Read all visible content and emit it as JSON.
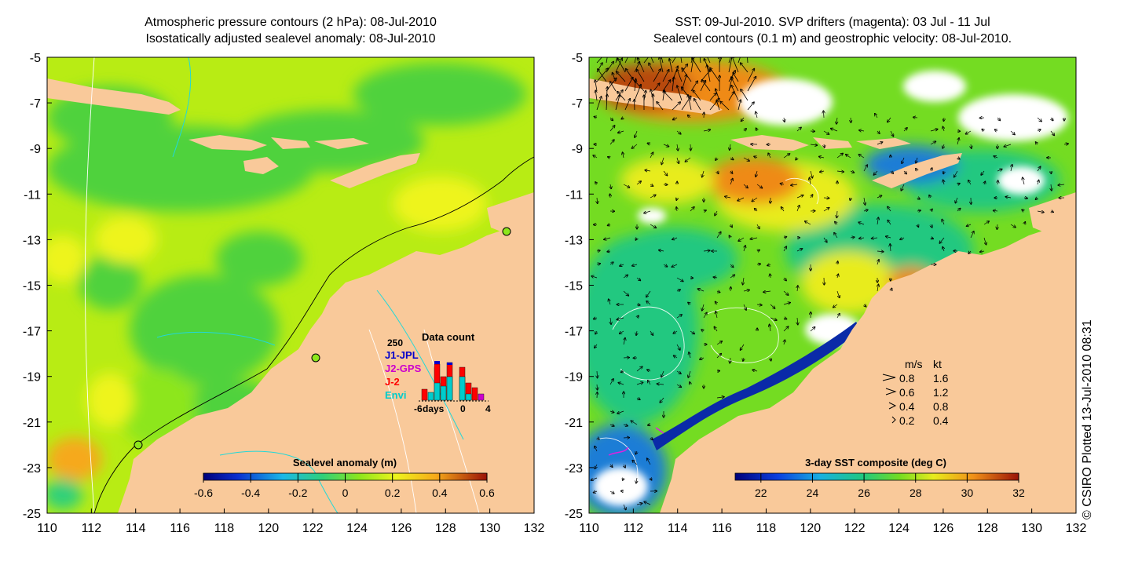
{
  "left_panel": {
    "title_line1": "Atmospheric pressure contours (2 hPa): 08-Jul-2010",
    "title_line2": "Isostatically adjusted sealevel anomaly: 08-Jul-2010",
    "colorbar": {
      "label": "Sealevel anomaly (m)",
      "ticks": [
        "-0.6",
        "-0.4",
        "-0.2",
        "0",
        "0.2",
        "0.4",
        "0.6"
      ],
      "range": [
        -0.6,
        0.6
      ]
    },
    "x_ticks": [
      "110",
      "112",
      "114",
      "116",
      "118",
      "120",
      "122",
      "124",
      "126",
      "128",
      "130",
      "132"
    ],
    "y_ticks": [
      "-5",
      "-7",
      "-9",
      "-11",
      "-13",
      "-15",
      "-17",
      "-19",
      "-21",
      "-23",
      "-25"
    ],
    "inset": {
      "title": "Data count",
      "max_label": "250",
      "x_labels": [
        "-6",
        "days",
        "0",
        "4"
      ],
      "legend": [
        {
          "name": "J1-JPL",
          "color": "#0000cc"
        },
        {
          "name": "J2-GPS",
          "color": "#cc00cc"
        },
        {
          "name": "J-2",
          "color": "#ff0000"
        },
        {
          "name": "Envi",
          "color": "#00cccc"
        }
      ]
    }
  },
  "right_panel": {
    "title_line1": "SST: 09-Jul-2010. SVP drifters (magenta): 03 Jul - 11 Jul",
    "title_line2": "Sealevel contours (0.1 m) and geostrophic velocity: 08-Jul-2010.",
    "colorbar": {
      "label": "3-day SST composite (deg C)",
      "ticks": [
        "22",
        "24",
        "26",
        "28",
        "30",
        "32"
      ],
      "range": [
        21,
        32
      ]
    },
    "x_ticks": [
      "110",
      "112",
      "114",
      "116",
      "118",
      "120",
      "122",
      "124",
      "126",
      "128",
      "130",
      "132"
    ],
    "y_ticks": [
      "-5",
      "-7",
      "-9",
      "-11",
      "-13",
      "-15",
      "-17",
      "-19",
      "-21",
      "-23",
      "-25"
    ],
    "velocity_legend": {
      "header": [
        "m/s",
        "kt"
      ],
      "rows": [
        [
          "0.8",
          "1.6"
        ],
        [
          "0.6",
          "1.2"
        ],
        [
          "0.4",
          "0.8"
        ],
        [
          "0.2",
          "0.4"
        ]
      ]
    }
  },
  "credit": "© CSIRO Plotted 13-Jul-2010 08:31",
  "colors": {
    "land": "#f9c99a",
    "sla_green": "#4fd23c",
    "sla_yellowgreen": "#b8ec14",
    "sla_yellow": "#eef41c",
    "sla_orange": "#f6a91a",
    "sst_warm": "#ef8a18",
    "sst_cool": "#1f7dd6"
  }
}
